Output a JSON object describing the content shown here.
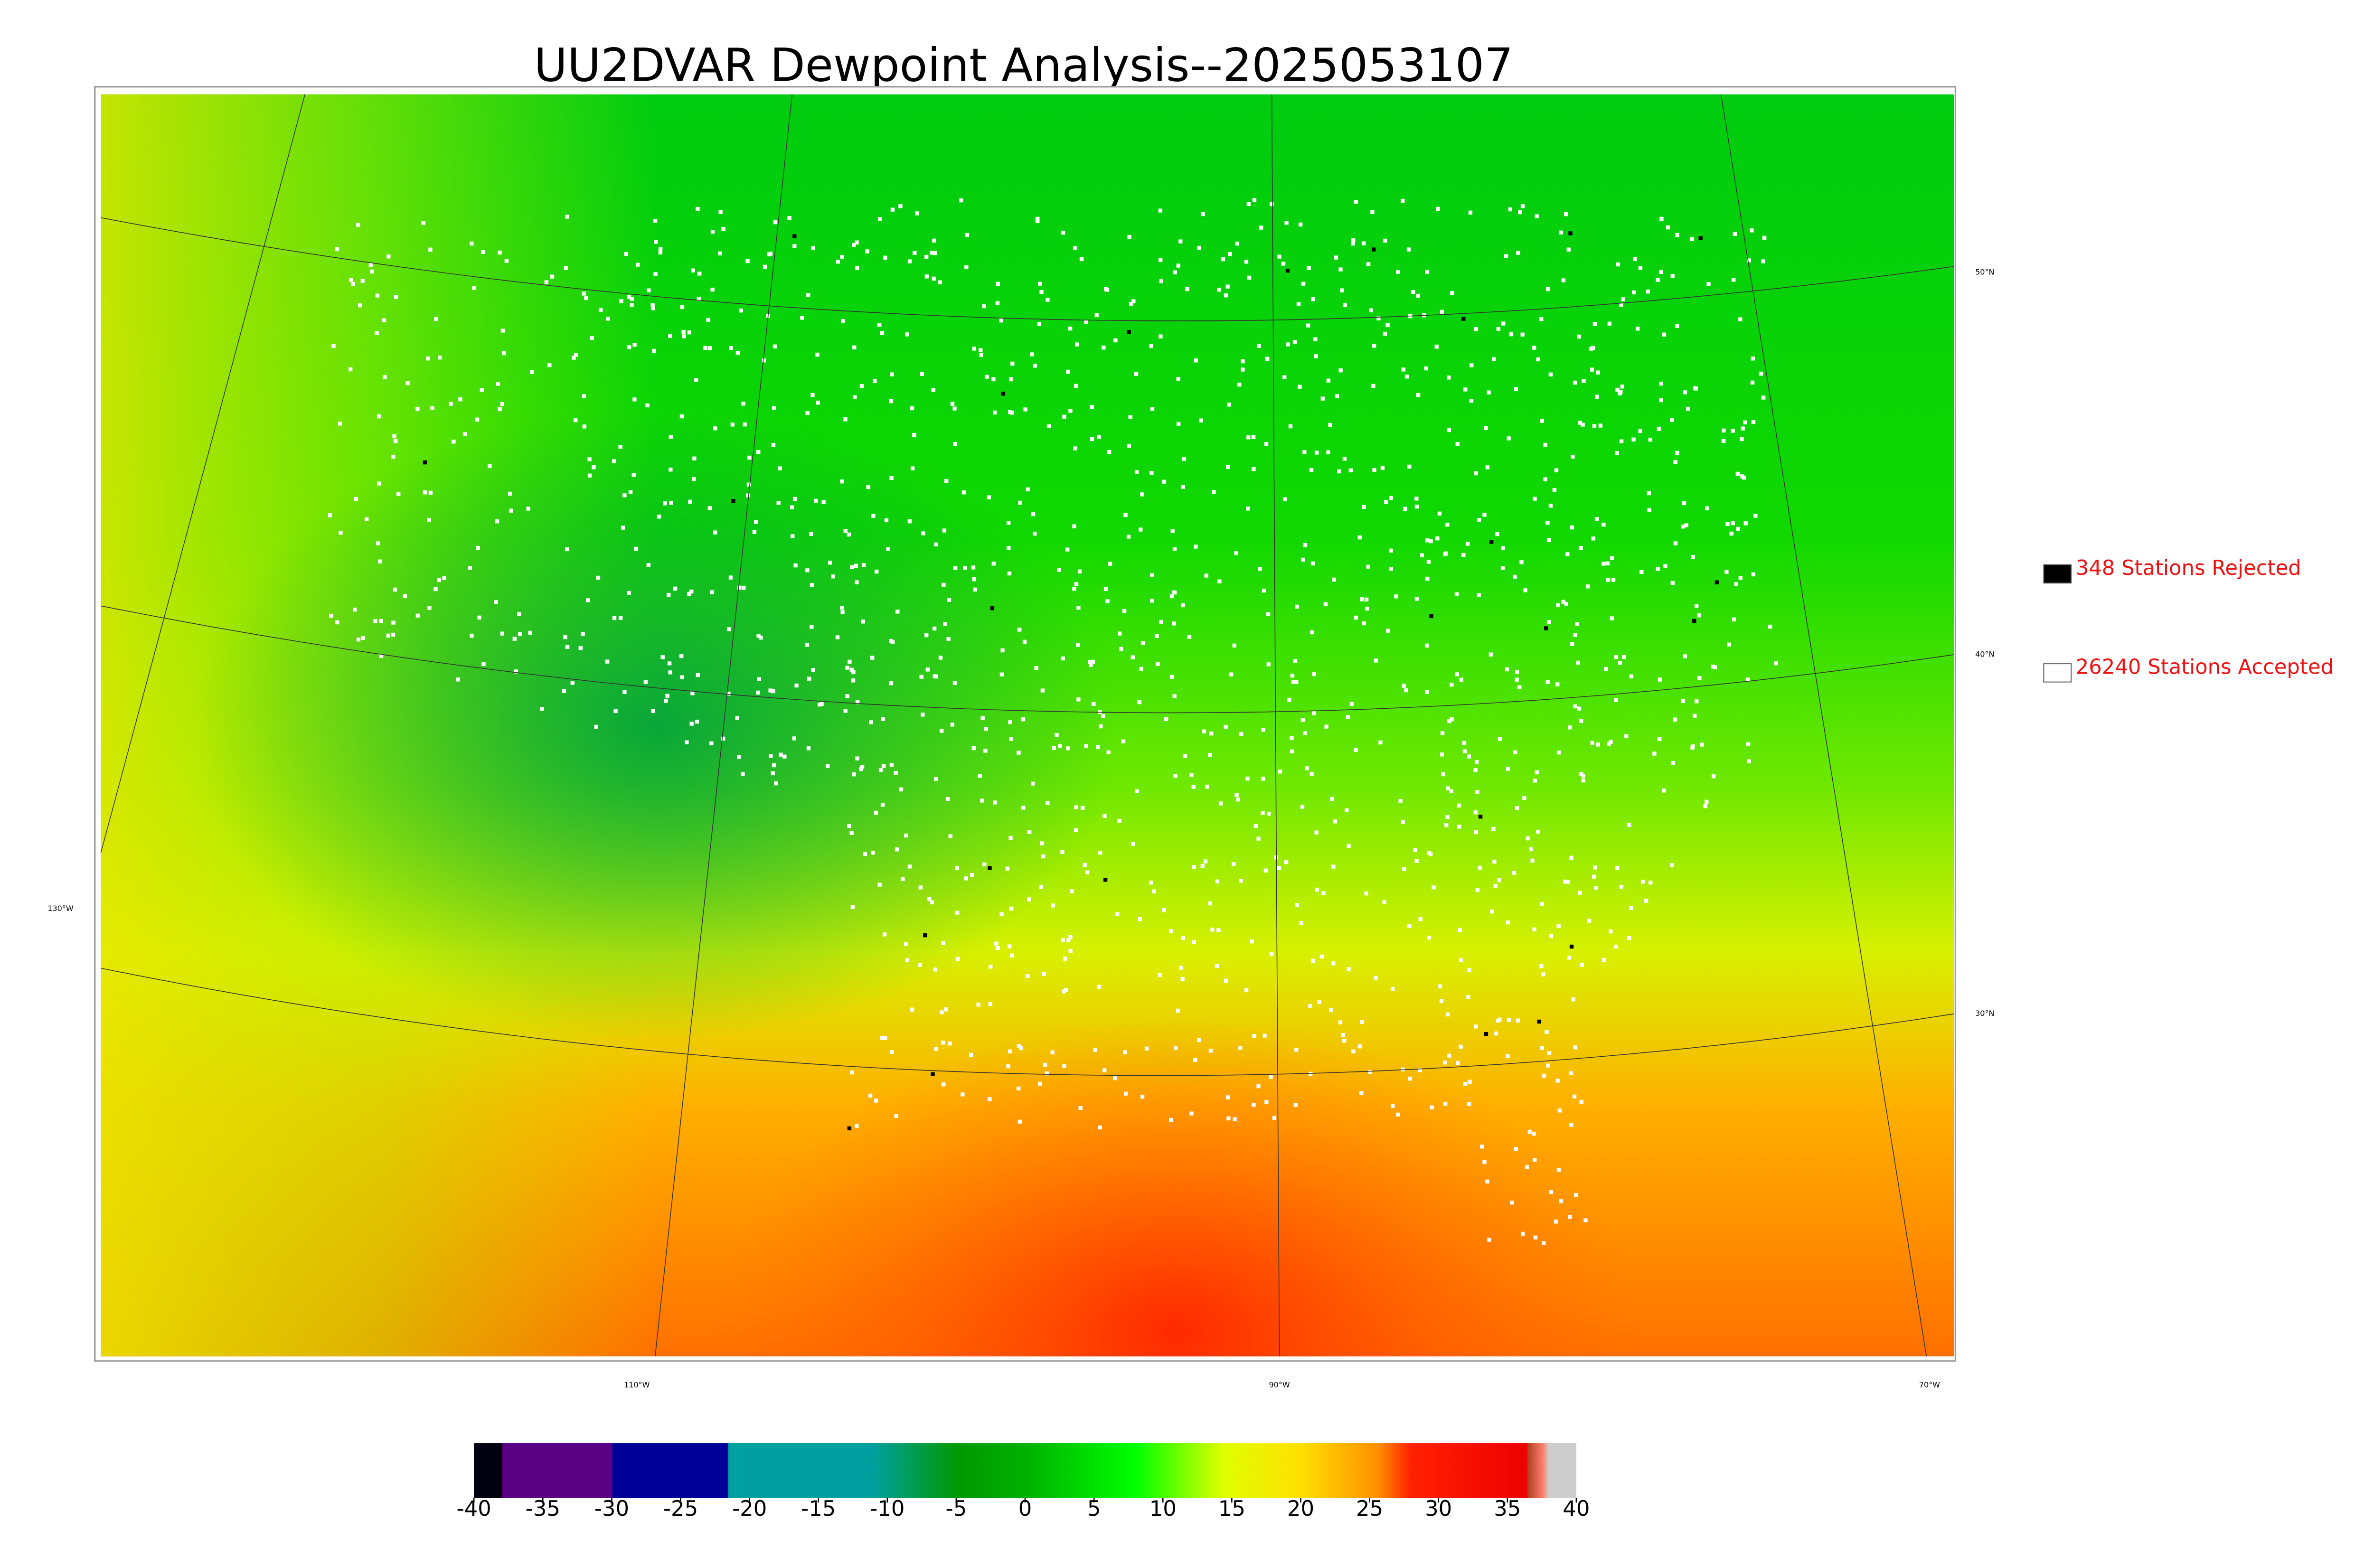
{
  "title": "UU2DVAR Dewpoint Analysis--2025053107",
  "legend": [
    {
      "label": "348 Stations Rejected",
      "color": "#000000"
    },
    {
      "label": "26240 Stations Accepted",
      "color": "#ffffff"
    }
  ],
  "latitude_labels": [
    "50°N",
    "40°N",
    "30°N"
  ],
  "longitude_labels": [
    "130°W",
    "110°W",
    "90°W",
    "70°W"
  ],
  "colorbar": {
    "ticks": [
      -40,
      -35,
      -30,
      -25,
      -20,
      -15,
      -10,
      -5,
      0,
      5,
      10,
      15,
      20,
      25,
      30,
      35,
      40
    ]
  }
}
